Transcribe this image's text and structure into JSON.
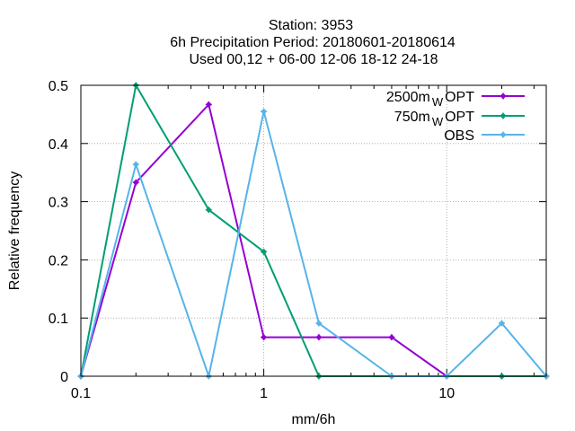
{
  "chart_data": {
    "type": "line",
    "title_lines": [
      "Station:     3953",
      "6h Precipitation  Period: 20180601-20180614",
      "Used  00,12  + 06-00 12-06 18-12 24-18"
    ],
    "xlabel": "mm/6h",
    "ylabel": "Relative frequency",
    "x_scale": "log",
    "xlim": [
      0.1,
      35
    ],
    "ylim": [
      0,
      0.5
    ],
    "x_ticks": [
      {
        "value": 0.1,
        "label": "0.1"
      },
      {
        "value": 1,
        "label": "1"
      },
      {
        "value": 10,
        "label": "10"
      }
    ],
    "y_ticks": [
      {
        "value": 0,
        "label": "0"
      },
      {
        "value": 0.1,
        "label": "0.1"
      },
      {
        "value": 0.2,
        "label": "0.2"
      },
      {
        "value": 0.3,
        "label": "0.3"
      },
      {
        "value": 0.4,
        "label": "0.4"
      },
      {
        "value": 0.5,
        "label": "0.5"
      }
    ],
    "legend_position": "top-right",
    "x": [
      0.1,
      0.2,
      0.5,
      1,
      2,
      5,
      10,
      20,
      35
    ],
    "series": [
      {
        "name": "2500m",
        "name_sub": "W",
        "name_tail": "OPT",
        "color": "#9400d3",
        "values": [
          0,
          0.333,
          0.467,
          0.067,
          0.067,
          0.067,
          0,
          0,
          0
        ]
      },
      {
        "name": "750m",
        "name_sub": "W",
        "name_tail": "OPT",
        "color": "#009e73",
        "values": [
          0,
          0.5,
          0.286,
          0.214,
          0,
          0,
          0,
          0,
          0
        ]
      },
      {
        "name": "OBS",
        "name_sub": "",
        "name_tail": "",
        "color": "#56b4e9",
        "values": [
          0,
          0.364,
          0,
          0.455,
          0.091,
          0,
          0,
          0.091,
          0
        ]
      }
    ]
  }
}
